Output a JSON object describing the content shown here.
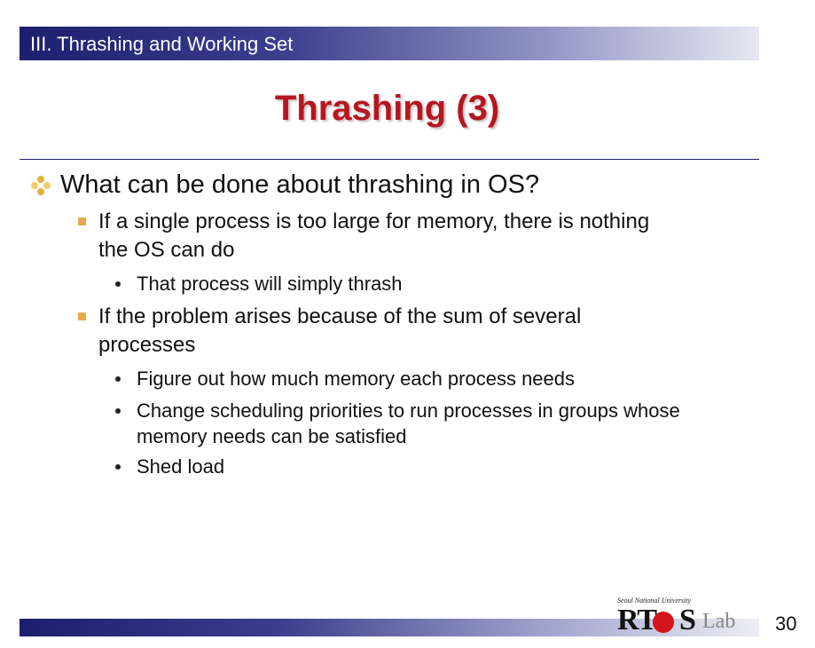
{
  "section": {
    "title": "III. Thrashing and Working Set"
  },
  "slide": {
    "title": "Thrashing (3)"
  },
  "content": {
    "question": "What can be done about thrashing in OS?",
    "point1": {
      "line1": "If a single process is too large for memory, there is nothing",
      "line2": "the OS can do",
      "sub1": "That process will simply thrash"
    },
    "point2": {
      "line1": "If the problem arises because of the sum of several",
      "line2": "processes",
      "sub1": "Figure out how much memory each process needs",
      "sub2_line1": "Change scheduling priorities to run processes in groups whose",
      "sub2_line2": "memory needs can be satisfied",
      "sub3": "Shed load"
    }
  },
  "footer": {
    "logo_caption": "Seoul National University",
    "logo_main_pre": "RT",
    "logo_main_post": "S",
    "logo_lab": "Lab",
    "page_number": "30"
  },
  "colors": {
    "title_red": "#b71621",
    "bar_navy": "#1c1f6e",
    "bullet_orange": "#e8a84c",
    "diamond_gold": "#e0b43a",
    "logo_red": "#d4141c"
  },
  "icons": [
    "diamond-bullet-icon",
    "square-bullet-icon",
    "dot-bullet-icon",
    "rtos-logo"
  ]
}
